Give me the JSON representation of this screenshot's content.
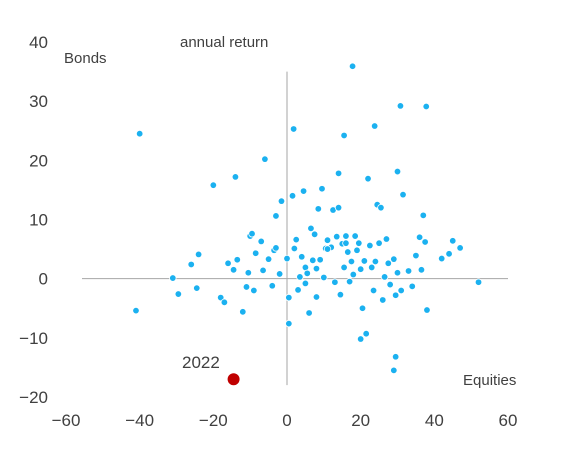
{
  "chart_data": {
    "type": "scatter",
    "title": "annual return",
    "xlabel": "Equities",
    "ylabel": "Bonds",
    "xlim": [
      -60,
      60
    ],
    "ylim": [
      -20,
      40
    ],
    "x_ticks": [
      -60,
      -40,
      -20,
      0,
      20,
      40,
      60
    ],
    "y_ticks": [
      40,
      30,
      20,
      10,
      0,
      -10,
      -20
    ],
    "grid": false,
    "colors": {
      "points": "#1BB1F0",
      "highlight": "#C00000",
      "axis": "#A6A6A6",
      "text": "#404040"
    },
    "points": [
      [
        -40,
        24.5
      ],
      [
        -20,
        15.8
      ],
      [
        -14,
        17.2
      ],
      [
        -6,
        20.2
      ],
      [
        1.8,
        25.3
      ],
      [
        15.5,
        24.2
      ],
      [
        17.8,
        35.9
      ],
      [
        23.8,
        25.8
      ],
      [
        30.8,
        29.2
      ],
      [
        37.8,
        29.1
      ],
      [
        -41,
        -5.4
      ],
      [
        -31,
        0.1
      ],
      [
        -29.5,
        -2.6
      ],
      [
        -26,
        2.4
      ],
      [
        -24,
        4.1
      ],
      [
        -24.5,
        -1.6
      ],
      [
        -18,
        -3.2
      ],
      [
        -17,
        -4.0
      ],
      [
        -16,
        2.6
      ],
      [
        -14.5,
        1.5
      ],
      [
        -13.5,
        3.2
      ],
      [
        -12,
        -5.6
      ],
      [
        -11,
        -1.4
      ],
      [
        -10.5,
        1.0
      ],
      [
        -10,
        7.2
      ],
      [
        -9.5,
        7.6
      ],
      [
        -9,
        -2.0
      ],
      [
        -8.5,
        4.3
      ],
      [
        -7,
        6.3
      ],
      [
        -6.5,
        1.4
      ],
      [
        -5,
        3.3
      ],
      [
        -4,
        -1.2
      ],
      [
        -3,
        10.6
      ],
      [
        -3.5,
        4.8
      ],
      [
        -3,
        5.2
      ],
      [
        -2,
        0.8
      ],
      [
        -1.5,
        13.1
      ],
      [
        0,
        3.4
      ],
      [
        0.5,
        -7.6
      ],
      [
        0.5,
        -3.2
      ],
      [
        1.5,
        14.0
      ],
      [
        2,
        5.1
      ],
      [
        2.5,
        6.6
      ],
      [
        3,
        -1.9
      ],
      [
        3.5,
        0.3
      ],
      [
        4,
        3.7
      ],
      [
        4.5,
        14.8
      ],
      [
        5,
        -0.8
      ],
      [
        5,
        1.9
      ],
      [
        5.5,
        0.9
      ],
      [
        6,
        -5.8
      ],
      [
        6.5,
        8.5
      ],
      [
        7,
        3.1
      ],
      [
        7.5,
        7.5
      ],
      [
        8,
        1.7
      ],
      [
        8,
        -3.1
      ],
      [
        8.5,
        11.8
      ],
      [
        9,
        3.2
      ],
      [
        10,
        0.2
      ],
      [
        9.5,
        15.2
      ],
      [
        10.5,
        5.1
      ],
      [
        11,
        6.5
      ],
      [
        12,
        5.3
      ],
      [
        12.5,
        11.6
      ],
      [
        13,
        -0.6
      ],
      [
        13.5,
        7.1
      ],
      [
        14,
        17.8
      ],
      [
        14,
        12.0
      ],
      [
        14.5,
        -2.7
      ],
      [
        15,
        5.9
      ],
      [
        15.5,
        1.9
      ],
      [
        16,
        7.2
      ],
      [
        16.5,
        4.5
      ],
      [
        17,
        -0.5
      ],
      [
        17.5,
        2.9
      ],
      [
        18,
        0.7
      ],
      [
        18.5,
        7.2
      ],
      [
        19,
        4.8
      ],
      [
        19.5,
        6.0
      ],
      [
        20,
        1.6
      ],
      [
        20.5,
        -5.0
      ],
      [
        21,
        3.0
      ],
      [
        21.5,
        -9.3
      ],
      [
        22,
        16.9
      ],
      [
        22.5,
        5.6
      ],
      [
        23,
        1.9
      ],
      [
        23.5,
        -2.0
      ],
      [
        24,
        2.9
      ],
      [
        24.5,
        12.5
      ],
      [
        25,
        6.0
      ],
      [
        25.5,
        12.0
      ],
      [
        26,
        -3.6
      ],
      [
        26.5,
        0.3
      ],
      [
        27,
        6.7
      ],
      [
        27.5,
        2.6
      ],
      [
        28,
        -1.0
      ],
      [
        29,
        3.3
      ],
      [
        29.5,
        -2.8
      ],
      [
        30,
        1.0
      ],
      [
        30,
        18.1
      ],
      [
        31,
        -2.0
      ],
      [
        31.5,
        14.2
      ],
      [
        33,
        1.3
      ],
      [
        34,
        -1.3
      ],
      [
        35,
        3.9
      ],
      [
        36,
        7.0
      ],
      [
        36.5,
        1.5
      ],
      [
        37,
        10.7
      ],
      [
        37.5,
        6.2
      ],
      [
        38,
        -5.3
      ],
      [
        42,
        3.4
      ],
      [
        44,
        4.2
      ],
      [
        45,
        6.4
      ],
      [
        47,
        5.2
      ],
      [
        52,
        -0.6
      ],
      [
        29.5,
        -13.2
      ],
      [
        29,
        -15.5
      ],
      [
        20,
        -10.2
      ],
      [
        16,
        6.0
      ],
      [
        11,
        5.0
      ]
    ],
    "highlight": {
      "label": "2022",
      "x": -14.5,
      "y": -17
    }
  }
}
